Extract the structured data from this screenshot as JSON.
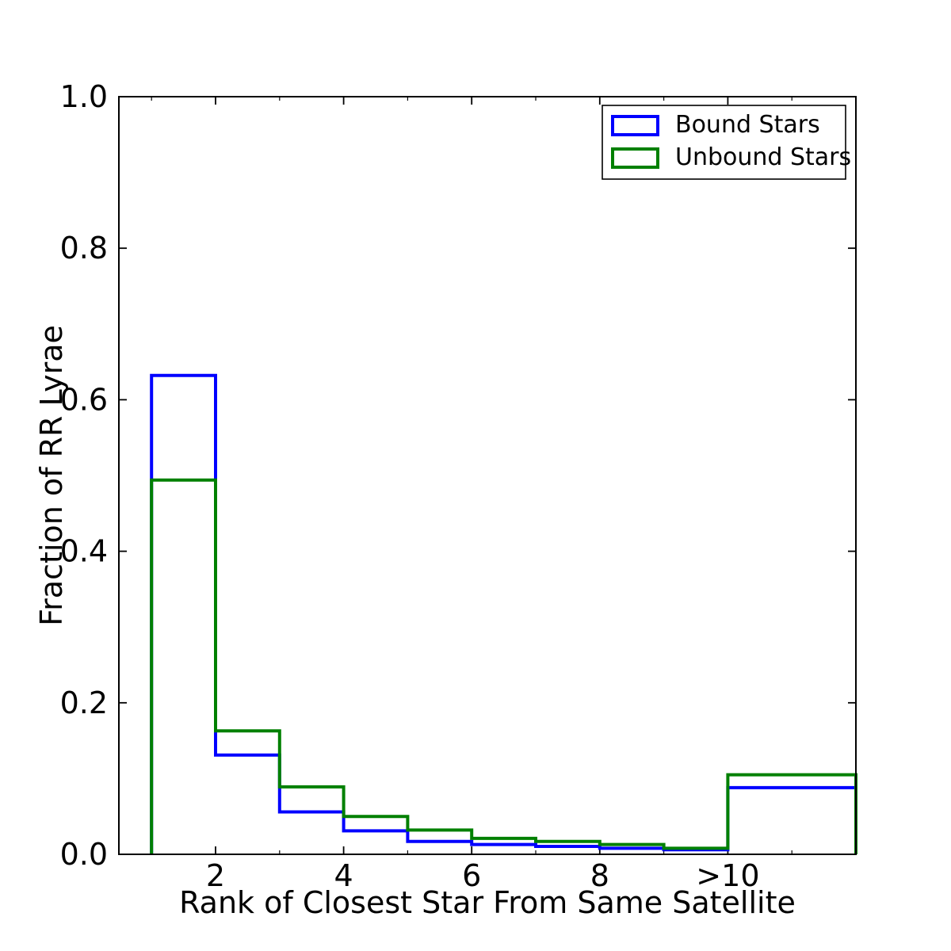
{
  "chart_data": {
    "type": "step-histogram",
    "title": "",
    "xlabel": "Rank of Closest Star From Same Satellite",
    "ylabel": "Fraction of RR Lyrae",
    "bin_edges": [
      1,
      2,
      3,
      4,
      5,
      6,
      7,
      8,
      9,
      10,
      12
    ],
    "series": [
      {
        "name": "Bound Stars",
        "color": "#0000ff",
        "values": [
          0.632,
          0.131,
          0.056,
          0.031,
          0.017,
          0.013,
          0.0105,
          0.008,
          0.006,
          0.088
        ]
      },
      {
        "name": "Unbound Stars",
        "color": "#008000",
        "values": [
          0.494,
          0.163,
          0.089,
          0.05,
          0.032,
          0.021,
          0.017,
          0.013,
          0.008,
          0.105
        ]
      }
    ],
    "xlim": [
      0.49,
      12
    ],
    "ylim": [
      0.0,
      1.0
    ],
    "x_major_ticks": [
      {
        "value": 2,
        "label": "2"
      },
      {
        "value": 4,
        "label": "4"
      },
      {
        "value": 6,
        "label": "6"
      },
      {
        "value": 8,
        "label": "8"
      },
      {
        "value": 10,
        "label": ">10"
      }
    ],
    "x_minor_ticks": [
      1,
      3,
      5,
      7,
      9,
      11
    ],
    "y_major_ticks": [
      {
        "value": 0.0,
        "label": "0.0"
      },
      {
        "value": 0.2,
        "label": "0.2"
      },
      {
        "value": 0.4,
        "label": "0.4"
      },
      {
        "value": 0.6,
        "label": "0.6"
      },
      {
        "value": 0.8,
        "label": "0.8"
      },
      {
        "value": 1.0,
        "label": "1.0"
      }
    ],
    "grid": false,
    "legend_position": "upper right",
    "axis_color": "#000000",
    "background_color": "#ffffff",
    "line_width": 4
  }
}
